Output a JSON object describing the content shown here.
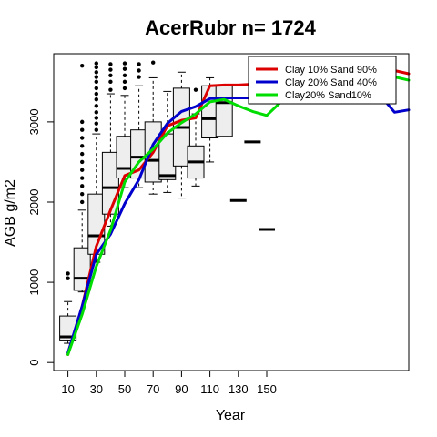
{
  "chart_data": {
    "type": "line",
    "title": "AcerRubr n= 1724",
    "xlabel": "Year",
    "ylabel": "AGB g/m2",
    "xlim": [
      0,
      250
    ],
    "ylim": [
      -100,
      3850
    ],
    "x_ticks": [
      10,
      30,
      50,
      70,
      90,
      110,
      130,
      150
    ],
    "y_ticks": [
      0,
      1000,
      2000,
      3000
    ],
    "grid": false,
    "legend_position": "top-right",
    "boxplot": {
      "x": [
        10,
        20,
        30,
        40,
        50,
        60,
        70,
        80,
        90,
        100,
        110,
        120,
        130,
        140,
        150
      ],
      "q1": [
        270,
        900,
        1350,
        1850,
        2300,
        2300,
        2250,
        2280,
        2450,
        2300,
        2800,
        2820,
        null,
        null,
        null
      ],
      "median": [
        320,
        1050,
        1580,
        2180,
        2420,
        2560,
        2520,
        2330,
        2930,
        2500,
        3040,
        3240,
        2020,
        2750,
        1660
      ],
      "q3": [
        580,
        1430,
        2100,
        2620,
        2820,
        2900,
        3000,
        2850,
        3420,
        2700,
        3450,
        3450,
        null,
        null,
        null
      ],
      "whisker_low": [
        240,
        880,
        1250,
        1700,
        2180,
        2180,
        2100,
        2120,
        2050,
        2200,
        2500,
        2820,
        null,
        null,
        null
      ],
      "whisker_high": [
        760,
        1900,
        2850,
        3350,
        3330,
        3450,
        3550,
        3380,
        3620,
        3100,
        3550,
        3450,
        null,
        null,
        null
      ],
      "outliers": [
        [
          10,
          1050
        ],
        [
          10,
          1110
        ],
        [
          20,
          2000
        ],
        [
          20,
          2100
        ],
        [
          20,
          2200
        ],
        [
          20,
          2300
        ],
        [
          20,
          2400
        ],
        [
          20,
          2500
        ],
        [
          20,
          2600
        ],
        [
          20,
          2700
        ],
        [
          20,
          2800
        ],
        [
          20,
          2900
        ],
        [
          20,
          3000
        ],
        [
          20,
          3700
        ],
        [
          30,
          2900
        ],
        [
          30,
          2980
        ],
        [
          30,
          3050
        ],
        [
          30,
          3120
        ],
        [
          30,
          3200
        ],
        [
          30,
          3280
        ],
        [
          30,
          3350
        ],
        [
          30,
          3420
        ],
        [
          30,
          3500
        ],
        [
          30,
          3560
        ],
        [
          30,
          3620
        ],
        [
          30,
          3680
        ],
        [
          30,
          3730
        ],
        [
          40,
          3400
        ],
        [
          40,
          3500
        ],
        [
          40,
          3580
        ],
        [
          40,
          3650
        ],
        [
          40,
          3720
        ],
        [
          50,
          3420
        ],
        [
          50,
          3500
        ],
        [
          50,
          3580
        ],
        [
          50,
          3660
        ],
        [
          50,
          3730
        ],
        [
          60,
          3560
        ],
        [
          60,
          3640
        ],
        [
          60,
          3720
        ],
        [
          70,
          3740
        ],
        [
          100,
          3400
        ]
      ]
    },
    "series": [
      {
        "name": "Clay 10% Sand 90%",
        "color": "#dd0000",
        "x": [
          10,
          20,
          30,
          40,
          50,
          60,
          70,
          80,
          90,
          100,
          110,
          120,
          130,
          140,
          150,
          160,
          170,
          180,
          190,
          200,
          210,
          220,
          230,
          240,
          250
        ],
        "y": [
          100,
          700,
          1450,
          1900,
          2330,
          2400,
          2620,
          2950,
          3020,
          3050,
          3450,
          3460,
          3460,
          3470,
          3480,
          3500,
          3500,
          3520,
          3540,
          3560,
          3580,
          3600,
          3620,
          3640,
          3600
        ]
      },
      {
        "name": "Clay 20% Sand 40%",
        "color": "#0000cc",
        "x": [
          10,
          20,
          30,
          40,
          50,
          60,
          70,
          80,
          90,
          100,
          110,
          120,
          130,
          140,
          150,
          160,
          170,
          180,
          190,
          200,
          210,
          220,
          230,
          240,
          250
        ],
        "y": [
          120,
          700,
          1350,
          1600,
          1980,
          2280,
          2720,
          2980,
          3130,
          3190,
          3290,
          3300,
          3300,
          3300,
          3300,
          3320,
          3340,
          3360,
          3380,
          3380,
          3360,
          3350,
          3330,
          3120,
          3150
        ]
      },
      {
        "name": "Clay20% Sand10%",
        "color": "#00dd00",
        "x": [
          10,
          20,
          30,
          40,
          50,
          60,
          70,
          80,
          90,
          100,
          110,
          120,
          130,
          140,
          150,
          160,
          170,
          180,
          190,
          200,
          210,
          220,
          230,
          240,
          250
        ],
        "y": [
          100,
          600,
          1200,
          1650,
          2250,
          2500,
          2660,
          2860,
          2990,
          3100,
          3250,
          3280,
          3200,
          3130,
          3080,
          3250,
          3320,
          3360,
          3400,
          3440,
          3470,
          3490,
          3510,
          3560,
          3520
        ]
      }
    ]
  }
}
